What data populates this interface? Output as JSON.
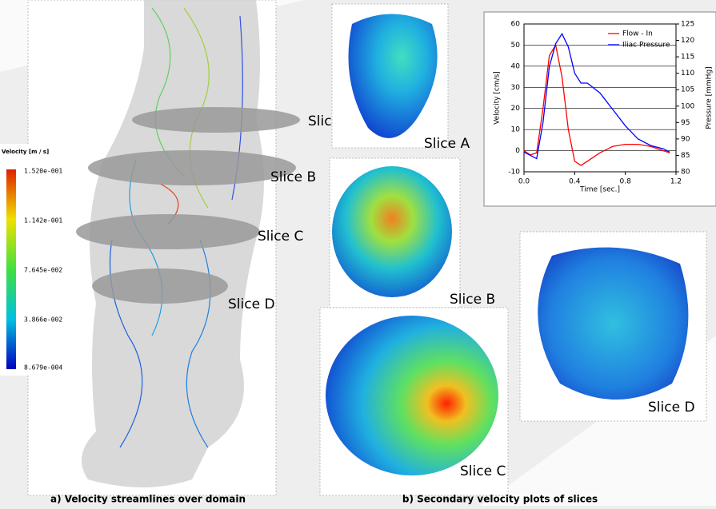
{
  "panel_a": {
    "colorbar": {
      "title": "Velocity [m / s]",
      "labels": [
        "1.520e-001",
        "1.142e-001",
        "7.645e-002",
        "3.866e-002",
        "8.679e-004"
      ]
    },
    "slices": [
      "Slice A",
      "Slice B",
      "Slice C",
      "Slice D"
    ],
    "caption": "a) Velocity streamlines over domain"
  },
  "panel_b": {
    "slices": [
      "Slice A",
      "Slice B",
      "Slice C",
      "Slice D"
    ],
    "caption": "b) Secondary velocity plots of slices"
  },
  "chart_data": {
    "type": "line",
    "x_label": "Time [sec.]",
    "y_label": "Velocity [cm/s]",
    "y2_label": "Pressure [mmHg]",
    "x": [
      0,
      0.05,
      0.1,
      0.15,
      0.2,
      0.25,
      0.3,
      0.35,
      0.4,
      0.45,
      0.5,
      0.6,
      0.7,
      0.8,
      0.9,
      1.0,
      1.1,
      1.15
    ],
    "series": [
      {
        "name": "Flow - In",
        "color": "#ff0000",
        "values": [
          0,
          -2,
          -1,
          20,
          45,
          50,
          35,
          10,
          -5,
          -7,
          -5,
          -1,
          2,
          3,
          3,
          2,
          0,
          -1
        ]
      },
      {
        "name": "Iliac Pressure",
        "color": "#0000ff",
        "axis": "y2",
        "values": [
          86,
          85,
          84,
          95,
          112,
          119,
          122,
          118,
          110,
          107,
          107,
          104,
          99,
          94,
          90,
          88,
          87,
          86
        ]
      }
    ],
    "xlim": [
      0,
      1.2
    ],
    "xticks": [
      {
        "value": 0,
        "label": "0.0"
      },
      0.4,
      0.8,
      1.2
    ],
    "ylim": [
      -10,
      60
    ],
    "yticks": [
      -10,
      0,
      10,
      20,
      30,
      40,
      50,
      60
    ],
    "y2lim": [
      80,
      125
    ],
    "y2ticks": [
      80,
      85,
      90,
      95,
      100,
      105,
      110,
      115,
      120,
      125
    ],
    "grid": true,
    "legend": "top-right"
  }
}
